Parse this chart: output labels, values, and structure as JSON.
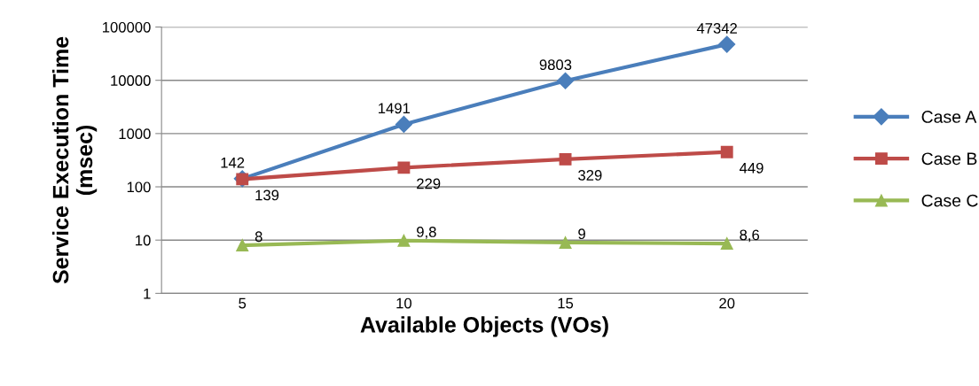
{
  "chart_data": {
    "type": "line",
    "xlabel": "Available Objects (VOs)",
    "ylabel": "Service Execution Time\n(msec)",
    "categories": [
      "5",
      "10",
      "15",
      "20"
    ],
    "series": [
      {
        "name": "Case A",
        "color": "#4a7ebb",
        "marker": "diamond",
        "values": [
          142,
          1491,
          9803,
          47342
        ],
        "value_labels": [
          "142",
          "1491",
          "9803",
          "47342"
        ]
      },
      {
        "name": "Case B",
        "color": "#be4b48",
        "marker": "square",
        "values": [
          139,
          229,
          329,
          449
        ],
        "value_labels": [
          "139",
          "229",
          "329",
          "449"
        ]
      },
      {
        "name": "Case C",
        "color": "#98b954",
        "marker": "triangle",
        "values": [
          8,
          9.8,
          9,
          8.6
        ],
        "value_labels": [
          "8",
          "9,8",
          "9",
          "8,6"
        ]
      }
    ],
    "log": "y",
    "ylim": [
      1,
      100000
    ],
    "yticks": [
      1,
      10,
      100,
      1000,
      10000,
      100000
    ],
    "grid": "y",
    "legend": "right"
  }
}
